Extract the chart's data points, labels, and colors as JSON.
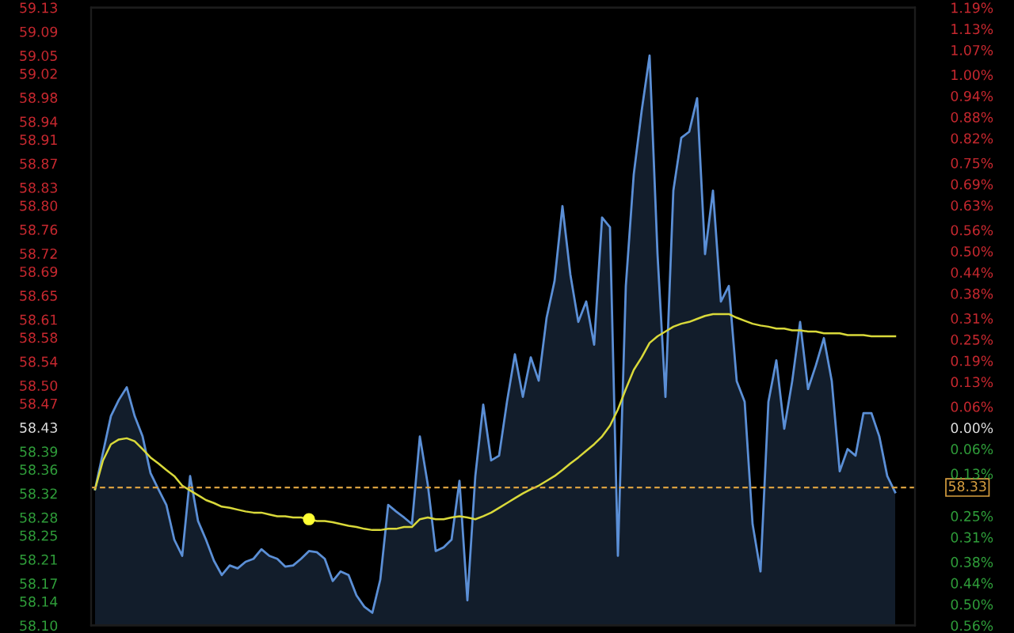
{
  "chart_data": {
    "type": "area",
    "categories": [
      null,
      null,
      null,
      null,
      null,
      null,
      null,
      null,
      null,
      null,
      null,
      null,
      null,
      null,
      null,
      null,
      null,
      null,
      null,
      null,
      null,
      null,
      null,
      null,
      null,
      null,
      null,
      null,
      null,
      null,
      null,
      null,
      null,
      null,
      null,
      null,
      null,
      null,
      null,
      null,
      null,
      null,
      null,
      null,
      null,
      null,
      null,
      null,
      null,
      null,
      null,
      null,
      null,
      null,
      null,
      null,
      null,
      null,
      null,
      null,
      null,
      null,
      null,
      null,
      null,
      null,
      null,
      null,
      null,
      null,
      null,
      null,
      null,
      null,
      null,
      null,
      null,
      null,
      null,
      null,
      null,
      null,
      null,
      null,
      null,
      null,
      null,
      null,
      null,
      null,
      null,
      null,
      null,
      null,
      null,
      null,
      null,
      null,
      null,
      null,
      null,
      null
    ],
    "series": [
      {
        "type": "area",
        "color": "#5b8fd6",
        "values": [
          58.327,
          58.388,
          58.449,
          58.476,
          58.497,
          58.449,
          58.415,
          58.354,
          58.327,
          58.301,
          58.243,
          58.216,
          58.349,
          58.274,
          58.243,
          58.208,
          58.184,
          58.2,
          58.195,
          58.206,
          58.211,
          58.227,
          58.216,
          58.211,
          58.198,
          58.2,
          58.211,
          58.224,
          58.222,
          58.211,
          58.174,
          58.19,
          58.184,
          58.15,
          58.131,
          58.121,
          58.176,
          58.301,
          58.29,
          58.28,
          58.269,
          58.415,
          58.335,
          58.224,
          58.23,
          58.243,
          58.341,
          58.142,
          58.349,
          58.468,
          58.375,
          58.383,
          58.473,
          58.552,
          58.481,
          58.547,
          58.508,
          58.613,
          58.674,
          58.799,
          58.685,
          58.606,
          58.64,
          58.568,
          58.78,
          58.764,
          58.216,
          58.666,
          58.852,
          58.958,
          59.05,
          58.719,
          58.481,
          58.825,
          58.913,
          58.923,
          58.979,
          58.719,
          58.825,
          58.64,
          58.666,
          58.507,
          58.473,
          58.269,
          58.19,
          58.473,
          58.542,
          58.428,
          58.507,
          58.606,
          58.494,
          58.534,
          58.579,
          58.507,
          58.357,
          58.394,
          58.383,
          58.454,
          58.454,
          58.415,
          58.349,
          58.322
        ]
      },
      {
        "type": "line",
        "color": "#d9d93a",
        "values": [
          58.327,
          58.375,
          58.402,
          58.41,
          58.412,
          58.407,
          58.394,
          58.38,
          58.37,
          58.359,
          58.349,
          58.333,
          58.325,
          58.317,
          58.309,
          58.304,
          58.298,
          58.296,
          58.293,
          58.29,
          58.288,
          58.288,
          58.285,
          58.282,
          58.282,
          58.28,
          58.28,
          58.277,
          58.274,
          58.274,
          58.272,
          58.269,
          58.266,
          58.264,
          58.261,
          58.259,
          58.259,
          58.261,
          58.261,
          58.264,
          58.264,
          58.277,
          58.28,
          58.277,
          58.277,
          58.28,
          58.282,
          58.28,
          58.277,
          58.282,
          58.288,
          58.296,
          58.304,
          58.312,
          58.32,
          58.327,
          58.333,
          58.341,
          58.349,
          58.359,
          58.37,
          58.38,
          58.391,
          58.402,
          58.415,
          58.433,
          58.46,
          58.494,
          58.526,
          58.547,
          58.571,
          58.582,
          58.59,
          58.598,
          58.603,
          58.606,
          58.611,
          58.616,
          58.619,
          58.619,
          58.619,
          58.613,
          58.608,
          58.603,
          58.6,
          58.598,
          58.595,
          58.595,
          58.592,
          58.592,
          58.59,
          58.59,
          58.587,
          58.587,
          58.587,
          58.584,
          58.584,
          58.584,
          58.582,
          58.582,
          58.582,
          58.582
        ]
      },
      {
        "type": "scatter",
        "color": "#ffff33",
        "values": [
          null,
          null,
          null,
          null,
          null,
          null,
          null,
          null,
          null,
          null,
          null,
          null,
          null,
          null,
          null,
          null,
          null,
          null,
          null,
          null,
          null,
          null,
          null,
          null,
          null,
          null,
          null,
          58.277,
          null,
          null,
          null,
          null,
          null,
          null,
          null,
          null,
          null,
          null,
          null,
          null,
          null,
          null,
          null,
          null,
          null,
          null,
          null,
          null,
          null,
          null,
          null,
          null,
          null,
          null,
          null,
          null,
          null,
          null,
          null,
          null,
          null,
          null,
          null,
          null,
          null,
          null,
          null,
          null,
          null,
          null,
          null,
          null,
          null,
          null,
          null,
          null,
          null,
          null,
          null,
          null,
          null,
          null,
          null,
          null,
          null,
          null,
          null,
          null,
          null,
          null,
          null,
          null,
          null,
          null,
          null,
          null,
          null,
          null,
          null,
          null,
          null,
          null
        ]
      }
    ],
    "ylim": [
      58.1,
      59.13
    ],
    "yticks": [
      59.13,
      59.09,
      59.05,
      59.02,
      58.98,
      58.94,
      58.91,
      58.87,
      58.83,
      {
        "value": 58.8,
        "label": "58.80"
      },
      58.76,
      58.72,
      58.69,
      58.65,
      58.61,
      58.58,
      58.54,
      {
        "value": 58.5,
        "label": "58.50"
      },
      58.47,
      58.43,
      58.39,
      58.36,
      58.32,
      58.28,
      58.25,
      58.21,
      58.17,
      58.14,
      {
        "value": 58.1,
        "label": "58.10"
      }
    ],
    "y2lim": [
      -0.56,
      1.19
    ],
    "y2ticks": [
      {
        "value": 1.19,
        "label": "1.19%"
      },
      {
        "value": 1.13,
        "label": "1.13%"
      },
      {
        "value": 1.07,
        "label": "1.07%"
      },
      {
        "value": 1.0,
        "label": "1.00%"
      },
      {
        "value": 0.94,
        "label": "0.94%"
      },
      {
        "value": 0.88,
        "label": "0.88%"
      },
      {
        "value": 0.82,
        "label": "0.82%"
      },
      {
        "value": 0.75,
        "label": "0.75%"
      },
      {
        "value": 0.69,
        "label": "0.69%"
      },
      {
        "value": 0.63,
        "label": "0.63%"
      },
      {
        "value": 0.56,
        "label": "0.56%"
      },
      {
        "value": 0.5,
        "label": "0.50%"
      },
      {
        "value": 0.44,
        "label": "0.44%"
      },
      {
        "value": 0.38,
        "label": "0.38%"
      },
      {
        "value": 0.31,
        "label": "0.31%"
      },
      {
        "value": 0.25,
        "label": "0.25%"
      },
      {
        "value": 0.19,
        "label": "0.19%"
      },
      {
        "value": 0.13,
        "label": "0.13%"
      },
      {
        "value": 0.06,
        "label": "0.06%"
      },
      {
        "value": 0.0,
        "label": "0.00%"
      },
      {
        "value": -0.06,
        "label": "0.06%"
      },
      {
        "value": -0.13,
        "label": "0.13%"
      },
      {
        "value": -0.25,
        "label": "0.25%"
      },
      {
        "value": -0.31,
        "label": "0.31%"
      },
      {
        "value": -0.38,
        "label": "0.38%"
      },
      {
        "value": -0.44,
        "label": "0.44%"
      },
      {
        "value": -0.5,
        "label": "0.50%"
      },
      {
        "value": -0.56,
        "label": "0.56%"
      }
    ],
    "ref_lines": [
      {
        "axis": "y",
        "value": 58.33,
        "label": "58.33",
        "color": "#d9a040",
        "line_style": "dashed"
      }
    ]
  }
}
